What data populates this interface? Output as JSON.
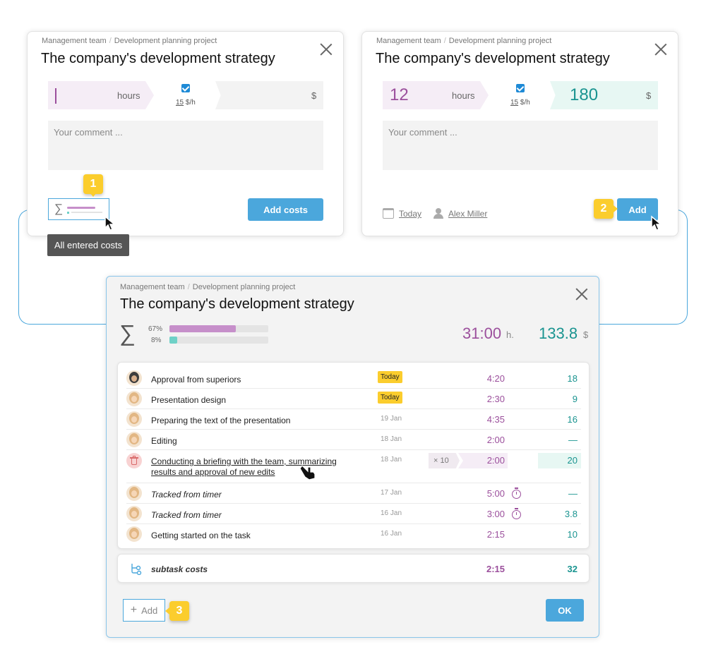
{
  "left_card": {
    "breadcrumb": [
      "Management team",
      "Development planning project"
    ],
    "title": "The company's development strategy",
    "hours_unit": "hours",
    "rate_value": "15",
    "rate_unit": "$/h",
    "money_unit": "$",
    "comment_placeholder": "Your comment ...",
    "add_costs_label": "Add costs",
    "tooltip": "All entered costs",
    "badge": "1"
  },
  "right_card": {
    "breadcrumb": [
      "Management team",
      "Development planning project"
    ],
    "title": "The company's development strategy",
    "hours_value": "12",
    "hours_unit": "hours",
    "rate_value": "15",
    "rate_unit": "$/h",
    "money_value": "180",
    "money_unit": "$",
    "comment_placeholder": "Your comment ...",
    "date_label": "Today",
    "user_label": "Alex Miller",
    "add_label": "Add",
    "badge": "2"
  },
  "main_card": {
    "breadcrumb": [
      "Management team",
      "Development planning project"
    ],
    "title": "The company's development strategy",
    "summary": {
      "bar1_label": "67%",
      "bar1_fraction": 0.67,
      "bar2_label": "8%",
      "bar2_fraction": 0.08,
      "total_hours": "31:00",
      "hours_unit": "h.",
      "total_cost": "133.8",
      "cost_unit": "$"
    },
    "rows": [
      {
        "name": "Approval from superiors",
        "date": "Today",
        "hours": "4:20",
        "cost": "18"
      },
      {
        "name": "Presentation design",
        "date": "Today",
        "hours": "2:30",
        "cost": "9"
      },
      {
        "name": "Preparing the text of the presentation",
        "date": "19 Jan",
        "hours": "4:35",
        "cost": "16"
      },
      {
        "name": "Editing",
        "date": "18 Jan",
        "hours": "2:00",
        "cost": "—"
      },
      {
        "name_line1": "Conducting a briefing with the team, summarizing",
        "name_line2": "results and approval of new edits",
        "date": "18 Jan",
        "multiplier": "× 10",
        "hours": "2:00",
        "cost": "20"
      },
      {
        "name": "Tracked from timer",
        "date": "17 Jan",
        "hours": "5:00",
        "cost": "—"
      },
      {
        "name": "Tracked from timer",
        "date": "16 Jan",
        "hours": "3:00",
        "cost": "3.8"
      },
      {
        "name": "Getting started on the task",
        "date": "16 Jan",
        "hours": "2:15",
        "cost": "10"
      }
    ],
    "subtask": {
      "label": "subtask costs",
      "hours": "2:15",
      "cost": "32"
    },
    "add_label": "Add",
    "ok_label": "OK",
    "badge": "3"
  },
  "colors": {
    "accent": "#4ba7dc",
    "purple": "#9b4f9c",
    "teal": "#1a9490",
    "badge": "#fbcd2d"
  },
  "icons": [
    "close-icon",
    "sigma-icon",
    "calendar-icon",
    "user-icon",
    "trash-icon",
    "timer-icon",
    "subtask-icon",
    "plus-icon",
    "cursor-icon",
    "hand-cursor-icon"
  ]
}
